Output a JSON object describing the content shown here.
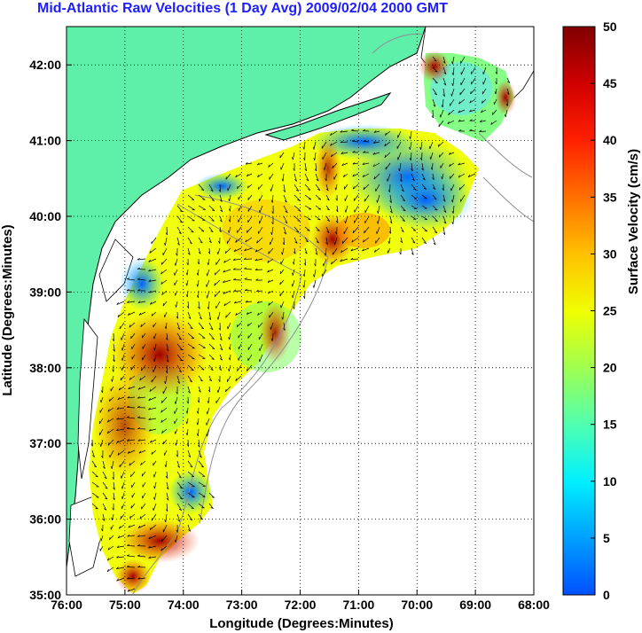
{
  "title": "Mid-Atlantic Raw Velocities (1 Day Avg) 2009/02/04 2000 GMT",
  "axes": {
    "xlabel": "Longitude (Degrees:Minutes)",
    "ylabel": "Latitude (Degrees:Minutes)",
    "x_ticks": [
      "76:00",
      "75:00",
      "74:00",
      "73:00",
      "72:00",
      "71:00",
      "70:00",
      "69:00",
      "68:00"
    ],
    "y_ticks": [
      "42:00",
      "41:00",
      "40:00",
      "39:00",
      "38:00",
      "37:00",
      "36:00",
      "35:00"
    ]
  },
  "colorbar": {
    "label": "Surface Velocity (cm/s)",
    "ticks": [
      "50",
      "45",
      "40",
      "35",
      "30",
      "25",
      "20",
      "15",
      "10",
      "5",
      "0"
    ]
  },
  "colors": {
    "land": "#5ef0a8",
    "coast_line": "#000000",
    "bathymetry": "#909090",
    "grid": "#000000",
    "title": "#1e1eff"
  }
}
